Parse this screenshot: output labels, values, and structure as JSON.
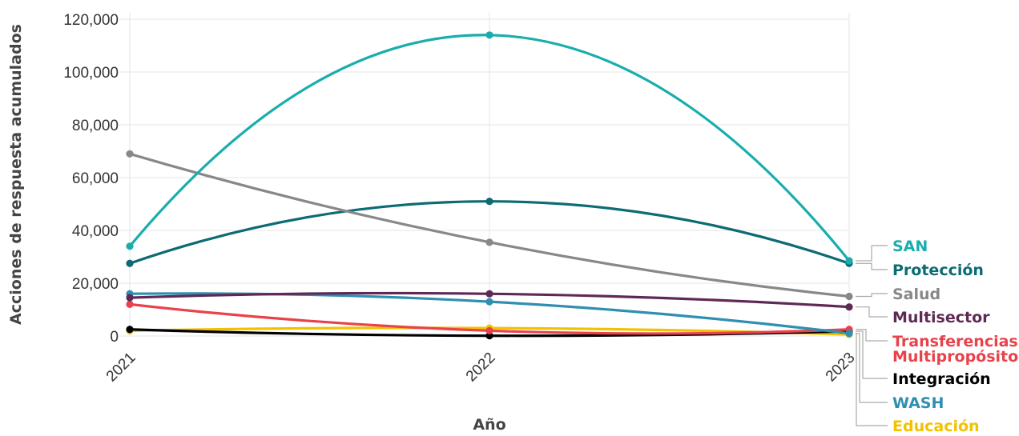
{
  "chart_data": {
    "type": "line",
    "title": "",
    "xlabel": "Año",
    "ylabel": "Acciones de respuesta acumulados",
    "x": [
      "2021",
      "2022",
      "2023"
    ],
    "ylim": [
      0,
      120000
    ],
    "yticks": [
      0,
      20000,
      40000,
      60000,
      80000,
      100000,
      120000
    ],
    "ytick_labels": [
      "0",
      "20,000",
      "40,000",
      "60,000",
      "80,000",
      "100,000",
      "120,000"
    ],
    "grid": true,
    "legend": "right, labels at line ends",
    "curve": "smooth",
    "series": [
      {
        "name": "SAN",
        "color": "#1aadad",
        "values": [
          34000,
          114000,
          28500
        ],
        "label_lines": [
          "SAN"
        ]
      },
      {
        "name": "Protección",
        "color": "#0c6b73",
        "values": [
          27500,
          51000,
          27500
        ],
        "label_lines": [
          "Protección"
        ]
      },
      {
        "name": "Salud",
        "color": "#888888",
        "values": [
          69000,
          35500,
          15000
        ],
        "label_lines": [
          "Salud"
        ]
      },
      {
        "name": "Multisector",
        "color": "#5e2a55",
        "values": [
          14500,
          16000,
          11000
        ],
        "label_lines": [
          "Multisector"
        ]
      },
      {
        "name": "Transferencias Multipropósito",
        "color": "#e8424a",
        "values": [
          12000,
          2000,
          2500
        ],
        "label_lines": [
          "Transferencias",
          "Multipropósito"
        ]
      },
      {
        "name": "Integración",
        "color": "#000000",
        "values": [
          2500,
          100,
          1800
        ],
        "label_lines": [
          "Integración"
        ]
      },
      {
        "name": "WASH",
        "color": "#2f8fb0",
        "values": [
          16000,
          13000,
          1000
        ],
        "label_lines": [
          "WASH"
        ]
      },
      {
        "name": "Educación",
        "color": "#f2c200",
        "values": [
          2000,
          3000,
          600
        ],
        "label_lines": [
          "Educación"
        ]
      }
    ]
  }
}
